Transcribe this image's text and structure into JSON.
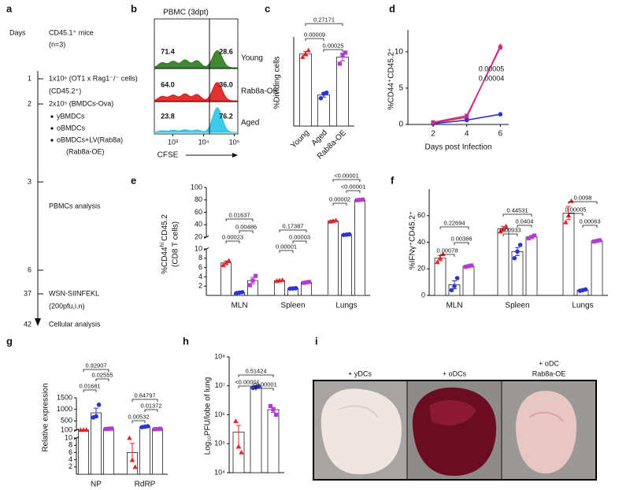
{
  "panel_labels": [
    "a",
    "b",
    "c",
    "d",
    "e",
    "f",
    "g",
    "h",
    "i"
  ],
  "timeline": {
    "header": "Days",
    "days": [
      "1",
      "2",
      "3",
      "6",
      "37",
      "42"
    ],
    "events": [
      [
        "CD45.1⁺ mice",
        "(n=3)"
      ],
      [
        "1x10⁶ (OT1 x Rag1⁻/⁻ cells)",
        "(CD45.2⁺)"
      ],
      [
        "2x10⁵ (BMDCs-Ova)",
        "yBMDCs",
        "oBMDCs",
        "oBMDCs+LV(Rab8a)",
        "(Rab8a-OE)"
      ],
      [
        "PBMCs analysis"
      ],
      [
        "WSN-SIINFEKL",
        "(200pfu,i.n)"
      ],
      [
        "Cellular analysis"
      ]
    ]
  },
  "chart_data": [
    {
      "type": "flow",
      "title": "PBMC (3dpt)",
      "xlabel": "CFSE",
      "xscale": "log",
      "xlim": [
        250,
        130000
      ],
      "xticks": [
        {
          "value": 1000,
          "label": "10³"
        },
        {
          "value": 10000,
          "label": "10⁴"
        },
        {
          "value": 100000,
          "label": "10⁵"
        }
      ],
      "series": [
        {
          "name": "Young",
          "color": "#2d7a1f",
          "values": [
            71.4,
            28.6
          ],
          "value_labels": [
            "71.4",
            "28.6"
          ]
        },
        {
          "name": "Rab8a-OE",
          "color": "#e01a1a",
          "values": [
            64.0,
            36.0
          ],
          "value_labels": [
            "64.0",
            "36.0"
          ]
        },
        {
          "name": "Aged",
          "color": "#29c4e8",
          "values": [
            23.8,
            76.2
          ],
          "value_labels": [
            "23.8",
            "76.2"
          ]
        }
      ]
    },
    {
      "type": "bar",
      "ylabel": "%Dividing cells",
      "categories": [
        "Young",
        "Aged",
        "Rab8a-OE"
      ],
      "values": [
        65,
        28,
        62
      ],
      "errors": [
        2,
        2,
        3.5
      ],
      "points": [
        [
          62,
          65,
          68
        ],
        [
          25,
          29,
          30
        ],
        [
          56,
          64,
          66
        ]
      ],
      "colors": [
        "#e8242a",
        "#2b34d6",
        "#b23ad8"
      ],
      "markers": [
        "triangle",
        "circle",
        "square"
      ],
      "ylim": [
        0,
        80
      ],
      "p_values": [
        "0.27171",
        "0.00025",
        "0.00009"
      ]
    },
    {
      "type": "line",
      "xlabel": "Days post Infection",
      "ylabel": "%CD44⁺CD45.2⁺",
      "x": [
        2,
        4,
        6
      ],
      "xlim": [
        0.5,
        6.5
      ],
      "xticks": [
        2,
        4,
        6
      ],
      "ylim": [
        0,
        13
      ],
      "yticks": [
        0,
        5,
        10
      ],
      "series": [
        {
          "color": "#e8242a",
          "marker": "triangle",
          "values": [
            0.2,
            1.0,
            10.8
          ]
        },
        {
          "color": "#2b34d6",
          "marker": "circle",
          "values": [
            0.1,
            0.6,
            1.4
          ]
        },
        {
          "color": "#c42f9e",
          "marker": "square",
          "values": [
            0.3,
            1.2,
            10.6
          ]
        }
      ],
      "annotations": [
        {
          "text": "0.00005",
          "color": "#2b34d6"
        },
        {
          "text": "0.00004",
          "color": "#b23ad8"
        }
      ]
    },
    {
      "type": "grouped_bar",
      "ylabel": [
        "%CD44",
        "hi",
        "CD45.2"
      ],
      "ylabel2": "(CD8 T cells)",
      "categories": [
        "MLN",
        "Spleen",
        "Lungs"
      ],
      "ylim": [
        0,
        100
      ],
      "ybreak": [
        10,
        20
      ],
      "yticks": [
        2,
        4,
        6,
        8,
        10,
        20,
        40,
        60,
        80,
        100
      ],
      "series": [
        {
          "color": "#e8242a",
          "marker": "triangle",
          "values": [
            7,
            3.2,
            46
          ],
          "errors": [
            0.4,
            0.1,
            1.2
          ],
          "points": [
            [
              6.5,
              7,
              7.5
            ],
            [
              3.1,
              3.2,
              3.3
            ],
            [
              45,
              46,
              47
            ]
          ]
        },
        {
          "color": "#2b34d6",
          "marker": "circle",
          "values": [
            0.6,
            1.5,
            24
          ],
          "errors": [
            0.1,
            0.05,
            0.5
          ],
          "points": [
            [
              0.5,
              0.6,
              0.7
            ],
            [
              1.45,
              1.5,
              1.55
            ],
            [
              23.5,
              24,
              24.5
            ]
          ]
        },
        {
          "color": "#b23ad8",
          "marker": "square",
          "values": [
            3.2,
            2.8,
            80
          ],
          "errors": [
            0.7,
            0.1,
            0.5
          ],
          "points": [
            [
              2.2,
              3.2,
              4.2
            ],
            [
              2.7,
              2.8,
              2.9
            ],
            [
              79.5,
              80,
              80.5
            ]
          ]
        }
      ],
      "p_values": [
        [
          "0.01637",
          "0.00486",
          "0.00023"
        ],
        [
          "0.17387",
          "0.00003",
          "0.00001"
        ],
        [
          "<0.00001",
          "<0.00001",
          "0.00002"
        ]
      ]
    },
    {
      "type": "grouped_bar",
      "ylabel": "%IFNγ⁺CD45.2⁺",
      "categories": [
        "MLN",
        "Spleen",
        "Lungs"
      ],
      "ylim": [
        0,
        80
      ],
      "yticks": [
        0,
        20,
        40,
        60
      ],
      "series": [
        {
          "color": "#e8242a",
          "marker": "triangle",
          "values": [
            28,
            50,
            62
          ],
          "errors": [
            2,
            2,
            5
          ],
          "points": [
            [
              25,
              28,
              31
            ],
            [
              48,
              50,
              52
            ],
            [
              55,
              60,
              71
            ]
          ]
        },
        {
          "color": "#2b34d6",
          "marker": "circle",
          "values": [
            8,
            33,
            4
          ],
          "errors": [
            3,
            3,
            0.6
          ],
          "points": [
            [
              4,
              7,
              13
            ],
            [
              28,
              33,
              38
            ],
            [
              3.5,
              4,
              4.5
            ]
          ]
        },
        {
          "color": "#b23ad8",
          "marker": "square",
          "values": [
            22,
            44,
            41
          ],
          "errors": [
            0.6,
            1,
            0.6
          ],
          "points": [
            [
              21.5,
              22,
              22.5
            ],
            [
              43,
              44,
              45
            ],
            [
              40.5,
              41,
              41.5
            ]
          ]
        }
      ],
      "p_values": [
        [
          "0.22694",
          "0.00366",
          "0.00078"
        ],
        [
          "0.44531",
          "0.0404",
          "0.00933"
        ],
        [
          "0.0098",
          "0.00063",
          "0.00005"
        ]
      ]
    },
    {
      "type": "grouped_bar",
      "ylabel": "Relative expression",
      "categories": [
        "NP",
        "RdRP"
      ],
      "ylim": [
        0,
        1500
      ],
      "ybreak": [
        10,
        100
      ],
      "yticks": [
        2,
        4,
        6,
        8,
        10,
        100,
        500,
        1000,
        1500
      ],
      "series": [
        {
          "color": "#e8242a",
          "marker": "triangle",
          "values": [
            110,
            6
          ],
          "errors": [
            5,
            2.5
          ],
          "points": [
            [
              105,
              110,
              115
            ],
            [
              10,
              4,
              2
            ]
          ]
        },
        {
          "color": "#2b34d6",
          "marker": "circle",
          "values": [
            850,
            250
          ],
          "errors": [
            200,
            20
          ],
          "points": [
            [
              650,
              700,
              1200
            ],
            [
              230,
              250,
              270
            ]
          ]
        },
        {
          "color": "#b23ad8",
          "marker": "square",
          "values": [
            160,
            150
          ],
          "errors": [
            8,
            8
          ],
          "points": [
            [
              150,
              160,
              170
            ],
            [
              140,
              150,
              160
            ]
          ]
        }
      ],
      "p_values": [
        [
          "0.92907",
          "0.02555",
          "0.01681"
        ],
        [
          "0.64797",
          "0.01372",
          "0.00532"
        ]
      ]
    },
    {
      "type": "bar",
      "ylabel": "Log₁₀PFU/lobe of lung",
      "yscale": "log",
      "ylim": [
        10000,
        100000000
      ],
      "yticks": [
        {
          "value": 10000,
          "label": "10⁴"
        },
        {
          "value": 100000,
          "label": "10⁵"
        },
        {
          "value": 1000000,
          "label": "10⁶"
        },
        {
          "value": 10000000,
          "label": "10⁷"
        },
        {
          "value": 100000000,
          "label": "10⁸"
        }
      ],
      "values": [
        250000,
        9000000,
        1500000
      ],
      "errors": [
        180000,
        300000,
        300000
      ],
      "points": [
        [
          600000,
          80000,
          50000
        ],
        [
          8500000,
          9000000,
          9500000
        ],
        [
          2000000,
          1500000,
          1000000
        ]
      ],
      "colors": [
        "#e8242a",
        "#2b34d6",
        "#b23ad8"
      ],
      "markers": [
        "triangle",
        "circle",
        "square"
      ],
      "p_values": [
        "0.51424",
        "<0.00001",
        "<0.00001"
      ]
    }
  ],
  "images": {
    "labels": [
      [
        "+ yDCs"
      ],
      [
        "+ oDCs"
      ],
      [
        "+ oDC",
        "Rab8a-OE"
      ]
    ]
  }
}
